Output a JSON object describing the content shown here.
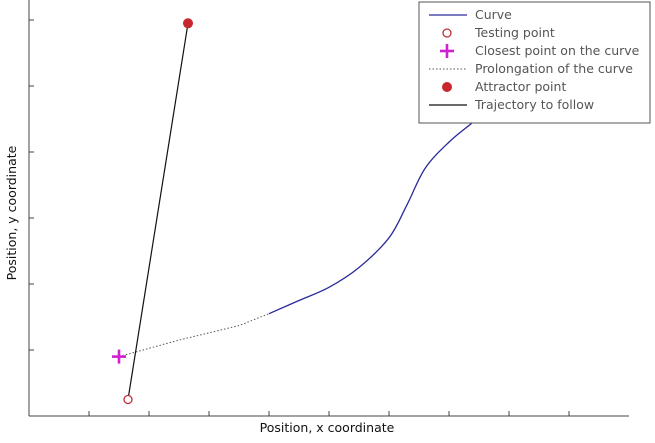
{
  "chart_data": {
    "type": "line",
    "xlabel": "Position, x coordinate",
    "ylabel": "Position, y coordinate",
    "grid": false,
    "legend_position": "top-right",
    "xlim": [
      0,
      10
    ],
    "ylim": [
      0,
      6
    ],
    "x_ticks": [
      1,
      2,
      3,
      4,
      5,
      6,
      7,
      8,
      9
    ],
    "y_ticks": [
      1,
      2,
      3,
      4,
      5,
      6
    ],
    "colors": {
      "curve": "#2a2a9a",
      "testing_point": "#c0303a",
      "closest_point": "#d020d0",
      "prolongation": "#555555",
      "attractor_point": "#c8272d",
      "trajectory": "#111111",
      "axes": "#444444"
    },
    "legend": [
      {
        "key": "curve",
        "label": "Curve",
        "marker": "line"
      },
      {
        "key": "testing_point",
        "label": "Testing point",
        "marker": "open-circle"
      },
      {
        "key": "closest_point",
        "label": "Closest point on the curve",
        "marker": "plus"
      },
      {
        "key": "prolongation",
        "label": "Prolongation of the curve",
        "marker": "dotted-line"
      },
      {
        "key": "attractor_point",
        "label": "Attractor point",
        "marker": "filled-circle"
      },
      {
        "key": "trajectory",
        "label": "Trajectory to follow",
        "marker": "line"
      }
    ],
    "series": [
      {
        "key": "curve",
        "x": [
          4.0,
          4.5,
          5.0,
          5.5,
          6.0,
          6.3,
          6.6,
          7.0,
          7.4
        ],
        "y": [
          1.55,
          1.75,
          1.95,
          2.25,
          2.7,
          3.2,
          3.75,
          4.15,
          4.45
        ]
      },
      {
        "key": "prolongation",
        "x": [
          1.5,
          2.5,
          3.5,
          4.0
        ],
        "y": [
          0.9,
          1.15,
          1.37,
          1.55
        ]
      },
      {
        "key": "trajectory",
        "x": [
          1.65,
          2.65
        ],
        "y": [
          0.25,
          5.95
        ]
      }
    ],
    "points": [
      {
        "key": "testing_point",
        "x": 1.65,
        "y": 0.25
      },
      {
        "key": "closest_point",
        "x": 1.5,
        "y": 0.9
      },
      {
        "key": "attractor_point",
        "x": 2.65,
        "y": 5.95
      }
    ]
  }
}
